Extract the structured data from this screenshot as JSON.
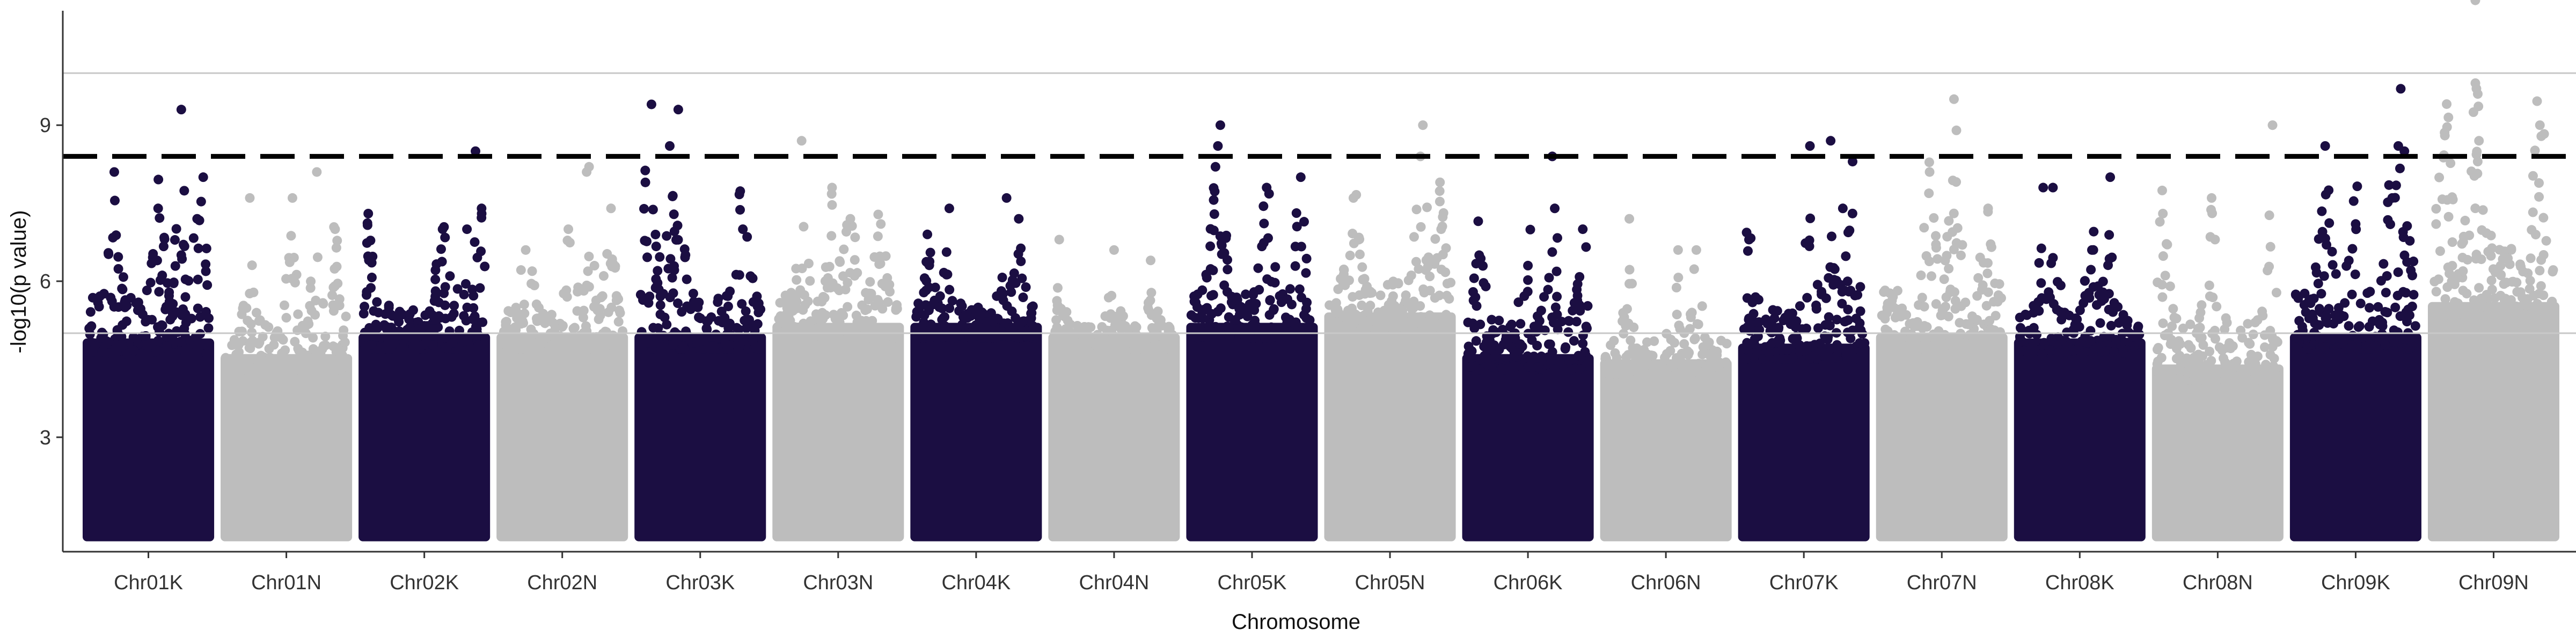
{
  "chart_data": {
    "type": "scatter",
    "title": "",
    "xlabel": "Chromosome",
    "ylabel": "-log10(p value)",
    "ylim": [
      0.8,
      11.2
    ],
    "yticks": [
      3,
      6,
      9
    ],
    "reference_lines": [
      5,
      10
    ],
    "threshold": 8.4,
    "point_floor": 1.0,
    "grid": false,
    "legend": "none",
    "colors": {
      "K": "#1b0e42",
      "N": "#bdbdbd"
    },
    "categories": [
      "Chr01K",
      "Chr01N",
      "Chr02K",
      "Chr02N",
      "Chr03K",
      "Chr03N",
      "Chr04K",
      "Chr04N",
      "Chr05K",
      "Chr05N",
      "Chr06K",
      "Chr06N",
      "Chr07K",
      "Chr07N",
      "Chr08K",
      "Chr08N",
      "Chr09K",
      "Chr09N"
    ],
    "series": [
      {
        "chromosome": "Chr01K",
        "color": "K",
        "dense_top": 4.9,
        "max": 9.3,
        "top_points": [
          [
            0.22,
            8.1
          ],
          [
            0.58,
            7.4
          ],
          [
            0.77,
            9.3
          ],
          [
            0.95,
            8.0
          ],
          [
            0.9,
            7.2
          ]
        ]
      },
      {
        "chromosome": "Chr01N",
        "color": "N",
        "dense_top": 4.6,
        "max": 8.1,
        "top_points": [
          [
            0.2,
            7.6
          ],
          [
            0.55,
            7.6
          ],
          [
            0.75,
            8.1
          ],
          [
            0.9,
            7.0
          ]
        ]
      },
      {
        "chromosome": "Chr02K",
        "color": "K",
        "dense_top": 5.0,
        "max": 8.5,
        "top_points": [
          [
            0.04,
            7.3
          ],
          [
            0.65,
            7.0
          ],
          [
            0.85,
            7.0
          ],
          [
            0.92,
            8.5
          ],
          [
            0.97,
            7.4
          ]
        ]
      },
      {
        "chromosome": "Chr02N",
        "color": "N",
        "dense_top": 5.0,
        "max": 8.2,
        "top_points": [
          [
            0.2,
            6.6
          ],
          [
            0.55,
            7.0
          ],
          [
            0.7,
            8.1
          ],
          [
            0.72,
            8.2
          ],
          [
            0.9,
            7.4
          ]
        ]
      },
      {
        "chromosome": "Chr03K",
        "color": "K",
        "dense_top": 5.0,
        "max": 9.4,
        "top_points": [
          [
            0.05,
            7.9
          ],
          [
            0.1,
            9.4
          ],
          [
            0.25,
            8.6
          ],
          [
            0.32,
            9.3
          ],
          [
            0.85,
            7.0
          ]
        ]
      },
      {
        "chromosome": "Chr03N",
        "color": "N",
        "dense_top": 5.2,
        "max": 8.7,
        "top_points": [
          [
            0.2,
            8.7
          ],
          [
            0.45,
            7.8
          ],
          [
            0.6,
            7.2
          ],
          [
            0.85,
            7.1
          ]
        ]
      },
      {
        "chromosome": "Chr04K",
        "color": "K",
        "dense_top": 5.2,
        "max": 7.6,
        "top_points": [
          [
            0.1,
            6.9
          ],
          [
            0.28,
            7.4
          ],
          [
            0.75,
            7.6
          ],
          [
            0.85,
            7.2
          ]
        ]
      },
      {
        "chromosome": "Chr04N",
        "color": "N",
        "dense_top": 5.0,
        "max": 6.8,
        "top_points": [
          [
            0.05,
            6.8
          ],
          [
            0.5,
            6.6
          ],
          [
            0.8,
            6.4
          ]
        ]
      },
      {
        "chromosome": "Chr05K",
        "color": "K",
        "dense_top": 5.2,
        "max": 9.0,
        "top_points": [
          [
            0.2,
            8.2
          ],
          [
            0.22,
            8.6
          ],
          [
            0.24,
            9.0
          ],
          [
            0.62,
            7.8
          ],
          [
            0.9,
            8.0
          ]
        ]
      },
      {
        "chromosome": "Chr05N",
        "color": "N",
        "dense_top": 5.4,
        "max": 9.0,
        "top_points": [
          [
            0.2,
            7.6
          ],
          [
            0.75,
            8.4
          ],
          [
            0.77,
            9.0
          ],
          [
            0.92,
            7.0
          ]
        ]
      },
      {
        "chromosome": "Chr06K",
        "color": "K",
        "dense_top": 4.6,
        "max": 8.4,
        "top_points": [
          [
            0.1,
            6.5
          ],
          [
            0.5,
            6.3
          ],
          [
            0.7,
            8.4
          ],
          [
            0.72,
            7.4
          ],
          [
            0.95,
            7.0
          ]
        ]
      },
      {
        "chromosome": "Chr06N",
        "color": "N",
        "dense_top": 4.5,
        "max": 7.2,
        "top_points": [
          [
            0.2,
            7.2
          ],
          [
            0.6,
            6.6
          ],
          [
            0.75,
            6.6
          ]
        ]
      },
      {
        "chromosome": "Chr07K",
        "color": "K",
        "dense_top": 4.8,
        "max": 8.7,
        "top_points": [
          [
            0.05,
            6.8
          ],
          [
            0.55,
            8.6
          ],
          [
            0.72,
            8.7
          ],
          [
            0.9,
            8.3
          ],
          [
            0.82,
            7.4
          ]
        ]
      },
      {
        "chromosome": "Chr07N",
        "color": "N",
        "dense_top": 5.0,
        "max": 9.5,
        "top_points": [
          [
            0.4,
            8.1
          ],
          [
            0.6,
            9.5
          ],
          [
            0.62,
            8.9
          ],
          [
            0.88,
            7.4
          ]
        ]
      },
      {
        "chromosome": "Chr08K",
        "color": "K",
        "dense_top": 4.9,
        "max": 8.0,
        "top_points": [
          [
            0.2,
            7.8
          ],
          [
            0.28,
            7.8
          ],
          [
            0.6,
            6.6
          ],
          [
            0.75,
            8.0
          ]
        ]
      },
      {
        "chromosome": "Chr08N",
        "color": "N",
        "dense_top": 4.4,
        "max": 9.0,
        "top_points": [
          [
            0.05,
            7.3
          ],
          [
            0.45,
            7.6
          ],
          [
            0.95,
            9.0
          ]
        ]
      },
      {
        "chromosome": "Chr09K",
        "color": "K",
        "dense_top": 5.0,
        "max": 9.7,
        "top_points": [
          [
            0.25,
            8.6
          ],
          [
            0.5,
            7.1
          ],
          [
            0.85,
            8.6
          ],
          [
            0.87,
            9.7
          ],
          [
            0.9,
            8.5
          ],
          [
            0.8,
            7.6
          ]
        ]
      },
      {
        "chromosome": "Chr09N",
        "color": "N",
        "dense_top": 5.6,
        "max": 11.4,
        "top_points": [
          [
            0.1,
            8.8
          ],
          [
            0.35,
            11.4
          ],
          [
            0.37,
            9.6
          ],
          [
            0.38,
            8.7
          ],
          [
            0.88,
            9.0
          ]
        ]
      }
    ]
  }
}
